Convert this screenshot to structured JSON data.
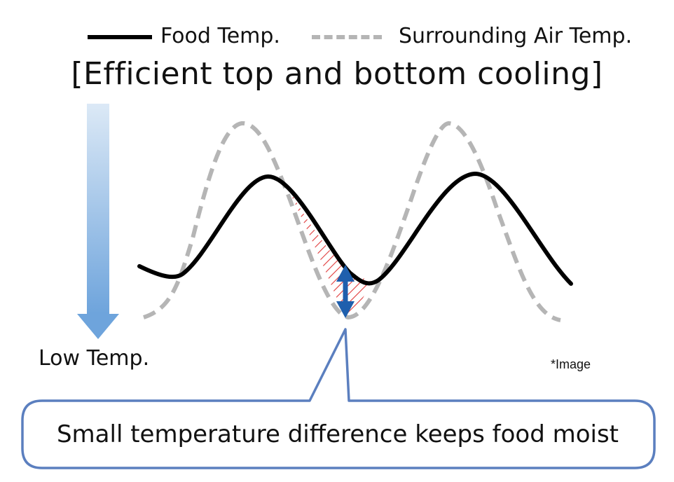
{
  "legend": {
    "food_temp": "Food Temp.",
    "air_temp": "Surrounding Air Temp."
  },
  "title": "[Efficient top and bottom cooling]",
  "axis_label": "Low Temp.",
  "note": "*Image",
  "callout": "Small temperature difference keeps food moist",
  "colors": {
    "food_line": "#000000",
    "air_line": "#b5b5b5",
    "hatch": "#e03a3a",
    "arrow": "#1f5fad",
    "callout_border": "#5b7fbf",
    "gradient_top": "#dce9f6",
    "gradient_bottom": "#6ea4dc"
  }
}
